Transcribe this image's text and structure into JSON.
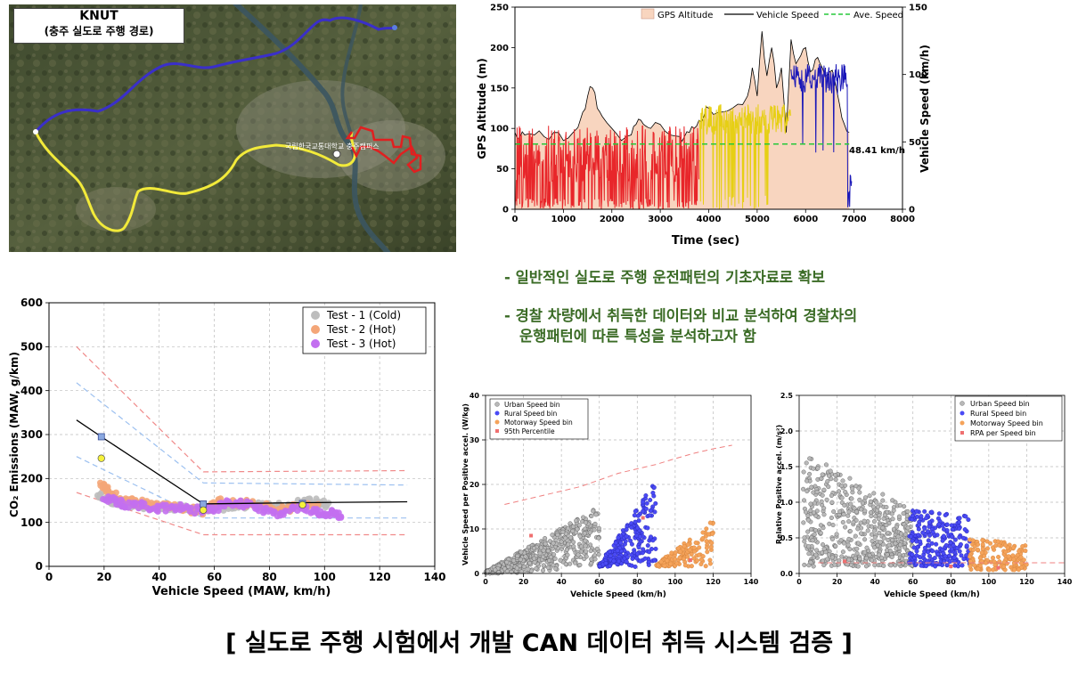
{
  "map": {
    "title_line1": "KNUT",
    "title_line2": "(충주 실도로 주행 경로)",
    "place_label": "국립한국교통대학교 충주캠퍼스",
    "route_colors": {
      "motorway": "#3a2fc9",
      "rural": "#f2ea3a",
      "urban": "#e02020"
    }
  },
  "bullets": [
    {
      "text": "- 일반적인 실도로 주행 운전패턴의 기초자료로 확보"
    },
    {
      "text": "- 경찰 차량에서 취득한 데이터와 비교 분석하여 경찰차의",
      "text2": "운행패턴에 따른 특성을 분석하고자 함"
    }
  ],
  "caption": "[ 실도로 주행 시험에서 개발 CAN 데이터 취득 시스템 검증 ]",
  "chart_data": [
    {
      "type": "line",
      "xlabel": "Time (sec)",
      "ylabel": "GPS Altitude (m)",
      "ylabel_right": "Vehicle Speed (km/h)",
      "xlim": [
        0,
        8000
      ],
      "ylim": [
        0,
        250
      ],
      "ylim_right": [
        0,
        150
      ],
      "xticks": [
        "0",
        "1000",
        "2000",
        "3000",
        "4000",
        "5000",
        "6000",
        "7000",
        "8000"
      ],
      "yticks": [
        "0",
        "50",
        "100",
        "150",
        "200",
        "250"
      ],
      "yticks_right": [
        "0",
        "50",
        "100",
        "150"
      ],
      "legend": [
        "GPS Altitude",
        "Vehicle Speed",
        "Ave. Speed"
      ],
      "annotation": "48.41 km/h",
      "average_speed": 48.41,
      "grid": false,
      "colors": {
        "altitude_fill": "#f8d5bf",
        "urban": "#e8262a",
        "rural": "#e6cf14",
        "motorway": "#1a17b8",
        "ave": "#27c83a"
      },
      "series": [
        {
          "name": "GPS Altitude",
          "x": [
            0,
            100,
            200,
            400,
            600,
            800,
            1000,
            1200,
            1400,
            1500,
            1600,
            1700,
            1800,
            2000,
            2200,
            2400,
            2500,
            2600,
            2700,
            2800,
            3000,
            3200,
            3400,
            3500,
            3600,
            3700,
            3800,
            3900,
            4000,
            4200,
            4400,
            4600,
            4800,
            4900,
            5000,
            5100,
            5200,
            5300,
            5400,
            5500,
            5600,
            5700,
            5800,
            5900,
            6000,
            6100,
            6200,
            6300,
            6400,
            6500,
            6600,
            6700,
            6800,
            6900
          ],
          "y": [
            95,
            88,
            92,
            92,
            90,
            95,
            85,
            95,
            120,
            140,
            150,
            125,
            115,
            100,
            85,
            92,
            105,
            110,
            103,
            100,
            105,
            92,
            90,
            90,
            95,
            100,
            110,
            115,
            125,
            120,
            122,
            130,
            140,
            175,
            140,
            220,
            165,
            200,
            150,
            175,
            95,
            210,
            180,
            190,
            200,
            170,
            185,
            180,
            165,
            170,
            160,
            130,
            105,
            95
          ]
        },
        {
          "name": "Vehicle Speed",
          "segments": [
            {
              "label": "urban",
              "t_range": [
                0,
                3800
              ],
              "speed_range": [
                0,
                62
              ]
            },
            {
              "label": "rural",
              "t_range": [
                3800,
                5700
              ],
              "speed_range": [
                0,
                78
              ]
            },
            {
              "label": "motorway",
              "t_range": [
                5700,
                6950
              ],
              "speed_range": [
                0,
                108
              ]
            }
          ]
        },
        {
          "name": "Ave. Speed",
          "y": 48.41
        }
      ]
    },
    {
      "type": "scatter",
      "xlabel": "Vehicle Speed (MAW, km/h)",
      "ylabel": "CO₂ Emissions (MAW, g/km)",
      "xlim": [
        0,
        140
      ],
      "ylim": [
        0,
        600
      ],
      "xticks": [
        "0",
        "20",
        "40",
        "60",
        "80",
        "100",
        "120",
        "140"
      ],
      "yticks": [
        "0",
        "100",
        "200",
        "300",
        "400",
        "500",
        "600"
      ],
      "grid": true,
      "legend": [
        "Test - 1 (Cold)",
        "Test - 2 (Hot)",
        "Test - 3 (Hot)"
      ],
      "colors": {
        "test1": "#bdbdbd",
        "test2": "#f4a678",
        "test3": "#c36ff0"
      },
      "series": [
        {
          "name": "Test - 1 (Cold)",
          "x": [
            18,
            22,
            26,
            30,
            34,
            40,
            46,
            52,
            58,
            64,
            70,
            76,
            82,
            88,
            94,
            98,
            102
          ],
          "y": [
            165,
            150,
            145,
            140,
            138,
            135,
            135,
            133,
            132,
            135,
            140,
            138,
            135,
            140,
            148,
            145,
            140
          ]
        },
        {
          "name": "Test - 2 (Hot)",
          "x": [
            19,
            21,
            24,
            28,
            32,
            38,
            44,
            50,
            56,
            62,
            68,
            74,
            80,
            86,
            92,
            98
          ],
          "y": [
            185,
            175,
            160,
            150,
            145,
            140,
            135,
            130,
            125,
            150,
            145,
            142,
            135,
            130,
            140,
            135
          ]
        },
        {
          "name": "Test - 3 (Hot)",
          "x": [
            20,
            24,
            28,
            34,
            40,
            46,
            52,
            58,
            62,
            66,
            72,
            78,
            84,
            90,
            96,
            100,
            104,
            106
          ],
          "y": [
            155,
            148,
            140,
            138,
            132,
            135,
            128,
            130,
            135,
            145,
            140,
            128,
            120,
            132,
            125,
            118,
            122,
            112
          ]
        },
        {
          "name": "characteristic",
          "x": [
            10,
            19,
            56,
            92,
            130
          ],
          "y": [
            333,
            295,
            142,
            145,
            147
          ]
        },
        {
          "name": "char-points",
          "x": [
            19,
            56,
            92
          ],
          "y": [
            295,
            142,
            143
          ]
        },
        {
          "name": "yellow-points",
          "x": [
            19,
            56,
            92
          ],
          "y": [
            246,
            128,
            140
          ]
        },
        {
          "name": "upper-red",
          "x": [
            10,
            56,
            130
          ],
          "y": [
            500,
            215,
            218
          ]
        },
        {
          "name": "upper-blue",
          "x": [
            10,
            56,
            130
          ],
          "y": [
            418,
            190,
            185
          ]
        },
        {
          "name": "lower-blue",
          "x": [
            10,
            56,
            130
          ],
          "y": [
            250,
            110,
            110
          ]
        },
        {
          "name": "lower-red",
          "x": [
            10,
            56,
            130
          ],
          "y": [
            168,
            72,
            72
          ]
        }
      ]
    },
    {
      "type": "scatter",
      "xlabel": "Vehicle Speed (km/h)",
      "ylabel": "Vehicle Speed per Positive accel. (W/kg)",
      "xlim": [
        0,
        140
      ],
      "ylim": [
        0,
        40
      ],
      "xticks": [
        "0",
        "20",
        "40",
        "60",
        "80",
        "100",
        "120",
        "140"
      ],
      "yticks": [
        "0",
        "10",
        "20",
        "30",
        "40"
      ],
      "grid": true,
      "legend": [
        "Urban Speed bin",
        "Rural Speed bin",
        "Motorway Speed bin",
        "95th Percentile"
      ],
      "colors": {
        "urban": "#b8b8b8",
        "rural": "#4a4af5",
        "motorway": "#f5a35a",
        "pct": "#ef7070"
      },
      "clusters": [
        {
          "label": "Urban Speed bin",
          "x_range": [
            0,
            60
          ],
          "y_max": [
            0.5,
            15
          ]
        },
        {
          "label": "Rural Speed bin",
          "x_range": [
            60,
            90
          ],
          "y_max": [
            2,
            21
          ]
        },
        {
          "label": "Motorway Speed bin",
          "x_range": [
            90,
            120
          ],
          "y_max": [
            2,
            12
          ]
        }
      ],
      "percentile_curve": {
        "x": [
          10,
          20,
          30,
          40,
          50,
          60,
          70,
          80,
          90,
          100,
          110,
          120,
          130
        ],
        "y": [
          15.5,
          16.5,
          17.5,
          18.5,
          19.5,
          21,
          22.5,
          23.5,
          24.5,
          25.8,
          27,
          28,
          28.8
        ]
      },
      "series": [
        {
          "name": "95th Percentile",
          "x": [
            24,
            83,
            108
          ],
          "y": [
            8.5,
            12.5,
            3
          ]
        }
      ]
    },
    {
      "type": "scatter",
      "xlabel": "Vehicle Speed (km/h)",
      "ylabel": "Relative Positive accel. (m/s²)",
      "xlim": [
        0,
        140
      ],
      "ylim": [
        0,
        2.5
      ],
      "xticks": [
        "0",
        "20",
        "40",
        "60",
        "80",
        "100",
        "120",
        "140"
      ],
      "yticks": [
        "0.0",
        "0.5",
        "1.0",
        "1.5",
        "2.0",
        "2.5"
      ],
      "grid": true,
      "legend": [
        "Urban Speed bin",
        "Rural Speed bin",
        "Motorway Speed bin",
        "RPA per Speed bin"
      ],
      "colors": {
        "urban": "#b8b8b8",
        "rural": "#4a4af5",
        "motorway": "#f5a35a",
        "rpa": "#ef7070"
      },
      "clusters": [
        {
          "label": "Urban Speed bin",
          "x_range": [
            2,
            60
          ],
          "y_max": [
            1.7,
            0.9
          ]
        },
        {
          "label": "Rural Speed bin",
          "x_range": [
            58,
            90
          ],
          "y_max": [
            0.9,
            0.8
          ]
        },
        {
          "label": "Motorway Speed bin",
          "x_range": [
            90,
            120
          ],
          "y_max": [
            0.5,
            0.4
          ]
        }
      ],
      "rpa_line": {
        "x": [
          10,
          140
        ],
        "y": [
          0.15,
          0.15
        ]
      },
      "series": [
        {
          "name": "RPA per Speed bin",
          "x": [
            24,
            80,
            105
          ],
          "y": [
            0.17,
            0.1,
            0.08
          ]
        }
      ]
    }
  ]
}
